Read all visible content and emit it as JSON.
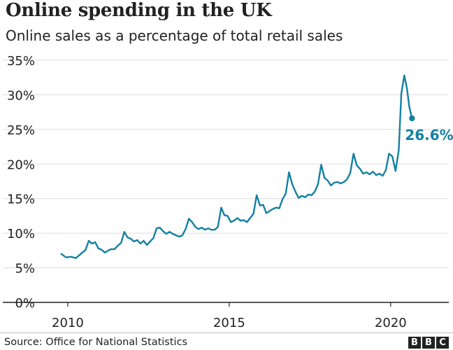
{
  "title": "Online spending in the UK",
  "subtitle": "Online sales as a percentage of total retail sales",
  "source": "Source: Office for National Statistics",
  "logo": [
    "B",
    "B",
    "C"
  ],
  "colors": {
    "line": "#1380a1",
    "text": "#222222",
    "grid": "#dcdcdc",
    "axis": "#222222"
  },
  "chart_data": {
    "type": "line",
    "title": "Online spending in the UK",
    "subtitle": "Online sales as a percentage of total retail sales",
    "xlabel": "",
    "ylabel": "",
    "xlim": [
      2009.2,
      2021.8
    ],
    "ylim": [
      0,
      35
    ],
    "x_ticks": [
      2010,
      2015,
      2020
    ],
    "y_ticks": [
      0,
      5,
      10,
      15,
      20,
      25,
      30,
      35
    ],
    "y_tick_labels": [
      "0%",
      "5%",
      "10%",
      "15%",
      "20%",
      "25%",
      "30%",
      "35%"
    ],
    "grid": true,
    "series": [
      {
        "name": "",
        "x": [
          2009.8,
          2009.95,
          2010.1,
          2010.25,
          2010.4,
          2010.55,
          2010.65,
          2010.75,
          2010.85,
          2010.95,
          2011.05,
          2011.15,
          2011.25,
          2011.35,
          2011.45,
          2011.55,
          2011.65,
          2011.75,
          2011.85,
          2011.95,
          2012.05,
          2012.15,
          2012.25,
          2012.35,
          2012.45,
          2012.55,
          2012.65,
          2012.75,
          2012.85,
          2012.95,
          2013.05,
          2013.15,
          2013.25,
          2013.35,
          2013.45,
          2013.55,
          2013.65,
          2013.75,
          2013.85,
          2013.95,
          2014.05,
          2014.15,
          2014.25,
          2014.35,
          2014.45,
          2014.55,
          2014.65,
          2014.75,
          2014.85,
          2014.95,
          2015.05,
          2015.15,
          2015.25,
          2015.35,
          2015.45,
          2015.55,
          2015.65,
          2015.75,
          2015.85,
          2015.95,
          2016.05,
          2016.15,
          2016.25,
          2016.35,
          2016.45,
          2016.55,
          2016.65,
          2016.75,
          2016.85,
          2016.95,
          2017.05,
          2017.15,
          2017.25,
          2017.35,
          2017.45,
          2017.55,
          2017.65,
          2017.75,
          2017.85,
          2017.95,
          2018.05,
          2018.15,
          2018.25,
          2018.35,
          2018.45,
          2018.55,
          2018.65,
          2018.75,
          2018.85,
          2018.95,
          2019.05,
          2019.15,
          2019.25,
          2019.35,
          2019.45,
          2019.55,
          2019.65,
          2019.75,
          2019.85,
          2019.95,
          2020.05,
          2020.15,
          2020.25,
          2020.33,
          2020.42,
          2020.5,
          2020.58,
          2020.66
        ],
        "y": [
          7.0,
          6.5,
          6.6,
          6.4,
          7.0,
          7.6,
          8.9,
          8.5,
          8.7,
          7.8,
          7.6,
          7.2,
          7.5,
          7.7,
          7.7,
          8.2,
          8.6,
          10.2,
          9.4,
          9.2,
          8.8,
          9.0,
          8.5,
          8.9,
          8.3,
          8.8,
          9.3,
          10.7,
          10.8,
          10.3,
          9.9,
          10.2,
          9.9,
          9.7,
          9.5,
          9.7,
          10.6,
          12.1,
          11.6,
          10.9,
          10.6,
          10.8,
          10.5,
          10.7,
          10.5,
          10.5,
          10.9,
          13.7,
          12.6,
          12.5,
          11.6,
          11.8,
          12.2,
          11.8,
          11.9,
          11.6,
          12.2,
          12.8,
          15.5,
          14.0,
          14.1,
          12.9,
          13.2,
          13.5,
          13.7,
          13.6,
          14.9,
          15.7,
          18.8,
          17.1,
          16.0,
          15.1,
          15.4,
          15.2,
          15.6,
          15.5,
          16.0,
          17.1,
          19.9,
          18.0,
          17.6,
          16.9,
          17.3,
          17.4,
          17.2,
          17.4,
          17.8,
          18.7,
          21.5,
          19.8,
          19.3,
          18.6,
          18.8,
          18.5,
          18.9,
          18.4,
          18.6,
          18.3,
          19.1,
          21.5,
          21.1,
          19.0,
          22.0,
          30.2,
          32.8,
          31.0,
          28.2,
          26.6
        ]
      }
    ],
    "annotations": [
      {
        "x": 2020.66,
        "y": 26.6,
        "label": "26.6%"
      }
    ]
  }
}
